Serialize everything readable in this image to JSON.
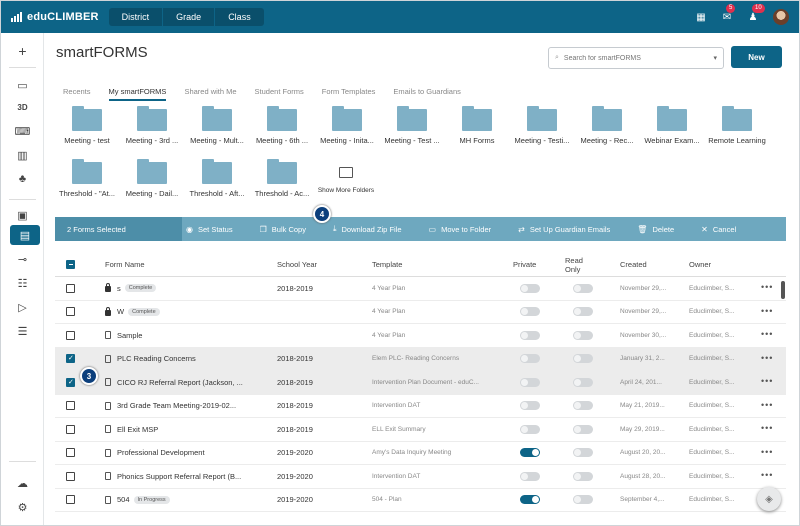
{
  "app": {
    "brand": "eduCLIMBER"
  },
  "nav_tabs": [
    "District",
    "Grade",
    "Class"
  ],
  "top_icons": {
    "mail_count": "5",
    "alert_count": "10"
  },
  "sidebar": [
    "plus-icon",
    "id-card-icon",
    "3D",
    "keyboard-icon",
    "chart-icon",
    "puzzle-icon",
    "calendar-icon",
    "clipboard-icon",
    "tag-icon",
    "group-icon",
    "send-icon",
    "list-icon",
    "cloud-upload-icon",
    "gear-icon"
  ],
  "sidebar_3d": "3D",
  "page": {
    "title": "smartFORMS",
    "new_label": "New"
  },
  "search": {
    "placeholder": "Search for smartFORMS"
  },
  "tabs": [
    "Recents",
    "My smartFORMS",
    "Shared with Me",
    "Student Forms",
    "Form Templates",
    "Emails to Guardians"
  ],
  "folders_row1": [
    "Meeting - test",
    "Meeting - 3rd ...",
    "Meeting - Mult...",
    "Meeting - 6th ...",
    "Meeting - Inita...",
    "Meeting - Test ...",
    "MH Forms",
    "Meeting - Testi...",
    "Meeting - Rec...",
    "Webinar Exam...",
    "Remote Learning"
  ],
  "folders_row2": [
    "Threshold - \"At...",
    "Meeting - Dail...",
    "Threshold - Aft...",
    "Threshold - Ac..."
  ],
  "show_more": "Show More Folders",
  "actionbar": {
    "selected": "2 Forms Selected",
    "set_status": "Set Status",
    "bulk_copy": "Bulk Copy",
    "download_zip": "Download Zip File",
    "move_folder": "Move to Folder",
    "guardian_emails": "Set Up Guardian Emails",
    "delete": "Delete",
    "cancel": "Cancel"
  },
  "steps": {
    "bulk": "4",
    "row": "3"
  },
  "columns": {
    "name": "Form Name",
    "year": "School Year",
    "template": "Template",
    "private": "Private",
    "readonly": "Read Only",
    "created": "Created",
    "owner": "Owner"
  },
  "rows": [
    {
      "name": "s",
      "badge": "Complete",
      "lock": true,
      "year": "2018-2019",
      "template": "4 Year Plan",
      "private": false,
      "readonly": false,
      "created": "November 29,...",
      "owner": "Educlimber, S...",
      "selected": false
    },
    {
      "name": "W",
      "badge": "Complete",
      "lock": true,
      "year": "",
      "template": "4 Year Plan",
      "private": false,
      "readonly": false,
      "created": "November 29,...",
      "owner": "Educlimber, S...",
      "selected": false
    },
    {
      "name": "Sample",
      "badge": "",
      "lock": false,
      "year": "",
      "template": "4 Year Plan",
      "private": false,
      "readonly": false,
      "created": "November 30,...",
      "owner": "Educlimber, S...",
      "selected": false
    },
    {
      "name": "PLC Reading Concerns",
      "badge": "",
      "lock": false,
      "year": "2018-2019",
      "template": "Elem PLC- Reading Concerns",
      "private": false,
      "readonly": false,
      "created": "January 31, 2...",
      "owner": "Educlimber, S...",
      "selected": true
    },
    {
      "name": "CICO RJ Referral Report (Jackson, ...",
      "badge": "",
      "lock": false,
      "year": "2018-2019",
      "template": "Intervention Plan Document - eduC...",
      "private": false,
      "readonly": false,
      "created": "April 24, 201...",
      "owner": "Educlimber, S...",
      "selected": true
    },
    {
      "name": "3rd Grade Team Meeting-2019-02...",
      "badge": "",
      "lock": false,
      "year": "2018-2019",
      "template": "Intervention DAT",
      "private": false,
      "readonly": false,
      "created": "May 21, 2019...",
      "owner": "Educlimber, S...",
      "selected": false
    },
    {
      "name": "Ell Exit MSP",
      "badge": "",
      "lock": false,
      "year": "2018-2019",
      "template": "ELL Exit Summary",
      "private": false,
      "readonly": false,
      "created": "May 29, 2019...",
      "owner": "Educlimber, S...",
      "selected": false
    },
    {
      "name": "Professional Development",
      "badge": "",
      "lock": false,
      "year": "2019-2020",
      "template": "Amy's Data Inquiry Meeting",
      "private": true,
      "readonly": false,
      "created": "August 20, 20...",
      "owner": "Educlimber, S...",
      "selected": false
    },
    {
      "name": "Phonics Support Referral Report (B...",
      "badge": "",
      "lock": false,
      "year": "2019-2020",
      "template": "Intervention DAT",
      "private": false,
      "readonly": false,
      "created": "August 28, 20...",
      "owner": "Educlimber, S...",
      "selected": false
    },
    {
      "name": "504",
      "badge": "In Progress",
      "lock": false,
      "year": "2019-2020",
      "template": "504 - Plan",
      "private": true,
      "readonly": false,
      "created": "September 4,...",
      "owner": "Educlimber, S...",
      "selected": false
    }
  ]
}
